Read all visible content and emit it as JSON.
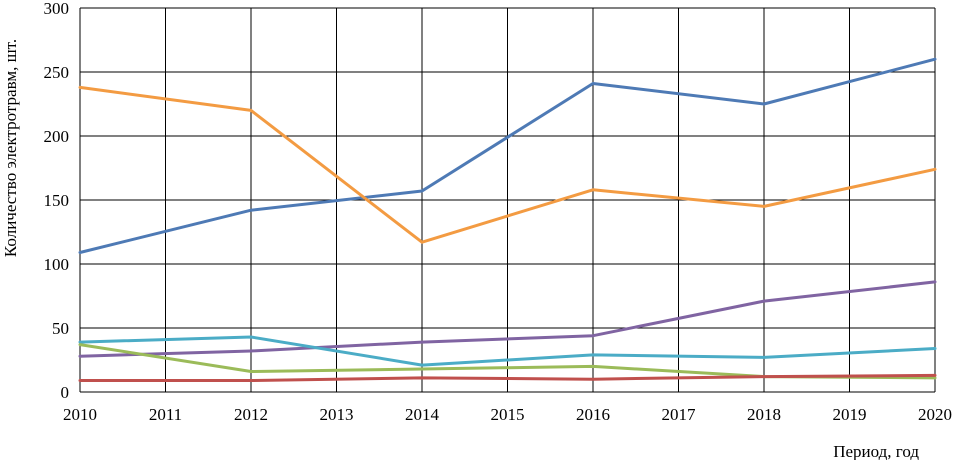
{
  "chart_data": {
    "type": "line",
    "xlabel": "Период, год",
    "ylabel": "Количество электротравм, шт.",
    "x": [
      2010,
      2011,
      2012,
      2013,
      2014,
      2015,
      2016,
      2017,
      2018,
      2019,
      2020
    ],
    "xlim": [
      2010,
      2020
    ],
    "ylim": [
      0,
      300
    ],
    "yticks": [
      0,
      50,
      100,
      150,
      200,
      250,
      300
    ],
    "grid": true,
    "legend": "none",
    "series": [
      {
        "color": "#4e7ab5",
        "points": [
          [
            2010,
            109
          ],
          [
            2012,
            142
          ],
          [
            2014,
            157
          ],
          [
            2016,
            241
          ],
          [
            2018,
            225
          ],
          [
            2020,
            260
          ]
        ]
      },
      {
        "color": "#f39b42",
        "points": [
          [
            2010,
            238
          ],
          [
            2012,
            220
          ],
          [
            2014,
            117
          ],
          [
            2016,
            158
          ],
          [
            2018,
            145
          ],
          [
            2020,
            174
          ]
        ]
      },
      {
        "color": "#8064a2",
        "points": [
          [
            2010,
            28
          ],
          [
            2012,
            32
          ],
          [
            2014,
            39
          ],
          [
            2016,
            44
          ],
          [
            2018,
            71
          ],
          [
            2020,
            86
          ]
        ]
      },
      {
        "color": "#4bacc6",
        "points": [
          [
            2010,
            39
          ],
          [
            2012,
            43
          ],
          [
            2014,
            21
          ],
          [
            2016,
            29
          ],
          [
            2018,
            27
          ],
          [
            2020,
            34
          ]
        ]
      },
      {
        "color": "#9bbb59",
        "points": [
          [
            2010,
            37
          ],
          [
            2012,
            16
          ],
          [
            2014,
            18
          ],
          [
            2016,
            20
          ],
          [
            2018,
            12
          ],
          [
            2020,
            11
          ]
        ]
      },
      {
        "color": "#c0504d",
        "points": [
          [
            2010,
            9
          ],
          [
            2012,
            9
          ],
          [
            2014,
            11
          ],
          [
            2016,
            10
          ],
          [
            2018,
            12
          ],
          [
            2020,
            13
          ]
        ]
      }
    ]
  }
}
